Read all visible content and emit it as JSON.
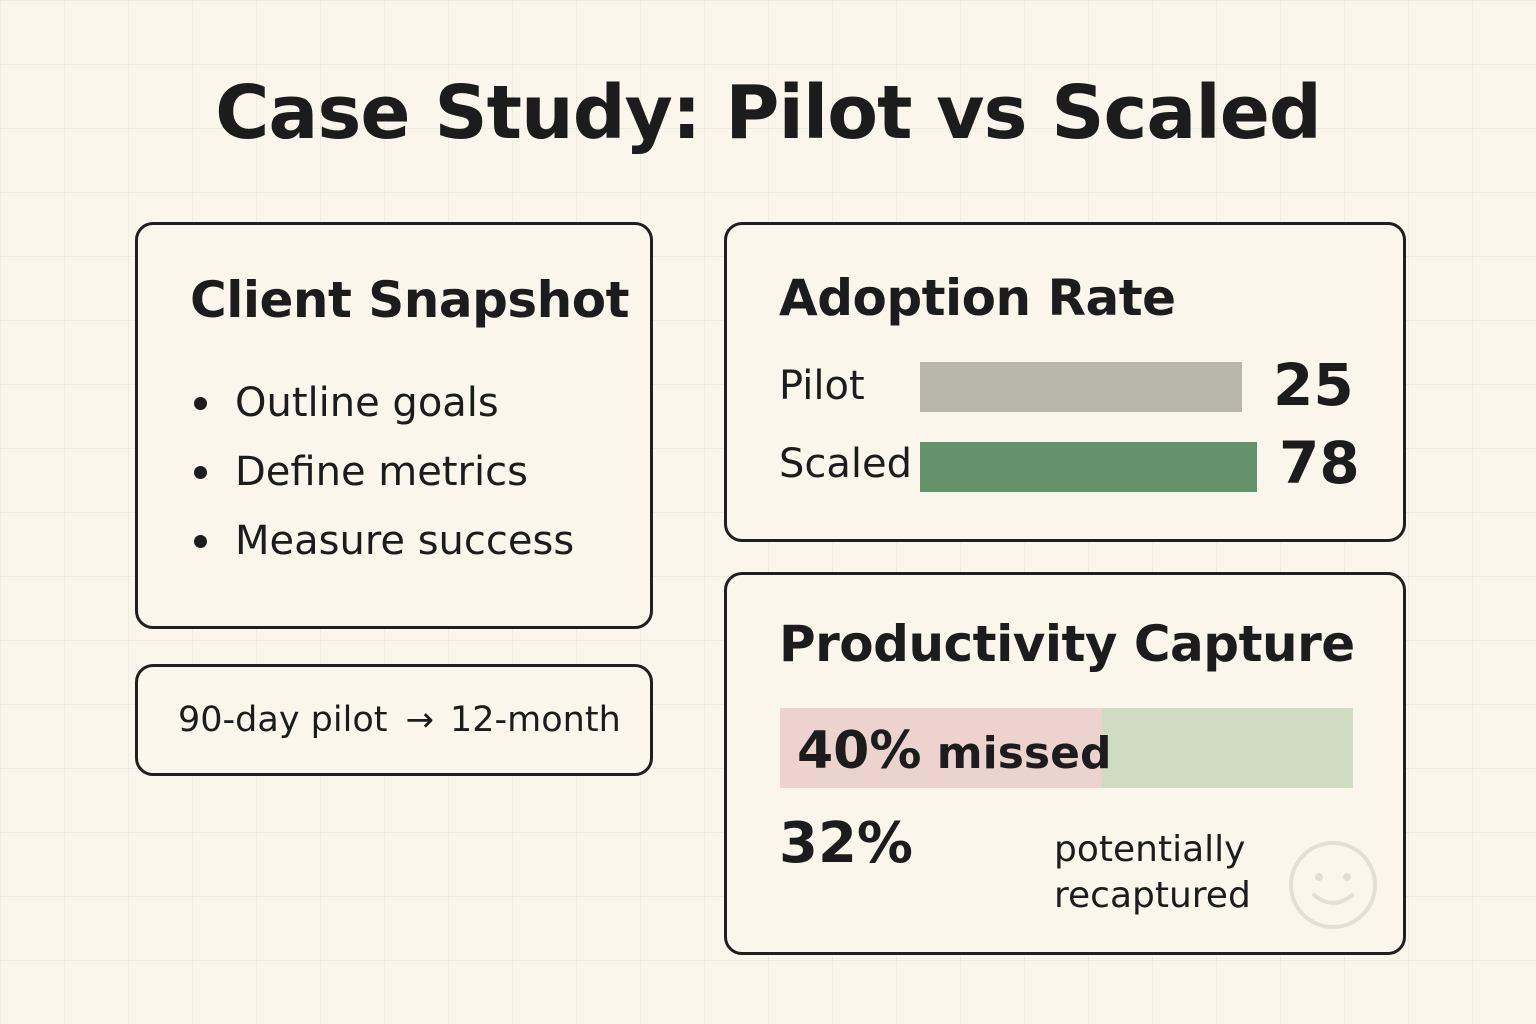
{
  "title": "Case Study: Pilot vs Scaled",
  "snapshot": {
    "title": "Client Snapshot",
    "items": [
      "Outline goals",
      "Define metrics",
      "Measure success"
    ]
  },
  "timeline": {
    "from": "90-day pilot",
    "to": "12-month",
    "arrow": "→"
  },
  "adoption": {
    "title": "Adoption Rate",
    "rows": [
      {
        "label": "Pilot",
        "value": 25,
        "color": "#b9b6ab"
      },
      {
        "label": "Scaled",
        "value": 78,
        "color": "#64936b"
      }
    ]
  },
  "productivity": {
    "title": "Productivity Capture",
    "missed_percent": 40,
    "missed_value": "40%",
    "missed_text": "missed",
    "recaptured_value": "32%",
    "recaptured_line1": "potentially",
    "recaptured_line2": "recaptured",
    "missed_color": "#ecd3cd",
    "rest_color": "#cfdcc2"
  },
  "chart_data": {
    "type": "bar",
    "title": "Adoption Rate",
    "categories": [
      "Pilot",
      "Scaled"
    ],
    "values": [
      25,
      78
    ]
  }
}
